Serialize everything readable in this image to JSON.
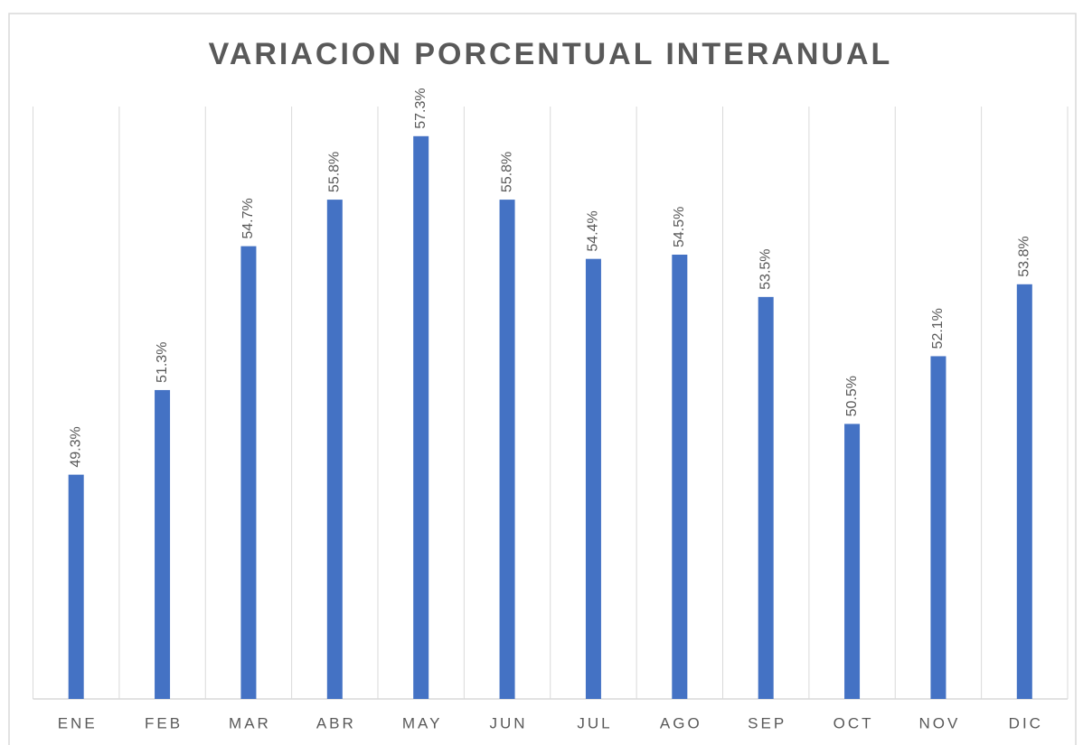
{
  "chart_data": {
    "type": "bar",
    "title": "VARIACION PORCENTUAL INTERANUAL",
    "categories": [
      "ENE",
      "FEB",
      "MAR",
      "ABR",
      "MAY",
      "JUN",
      "JUL",
      "AGO",
      "SEP",
      "OCT",
      "NOV",
      "DIC"
    ],
    "values": [
      49.3,
      51.3,
      54.7,
      55.8,
      57.3,
      55.8,
      54.4,
      54.5,
      53.5,
      50.5,
      52.1,
      53.8
    ],
    "value_labels": [
      "49.3%",
      "51.3%",
      "54.7%",
      "55.8%",
      "57.3%",
      "55.8%",
      "54.4%",
      "54.5%",
      "53.5%",
      "50.5%",
      "52.1%",
      "53.8%"
    ],
    "color": "#4472c4",
    "ylim": [
      44,
      58
    ]
  }
}
